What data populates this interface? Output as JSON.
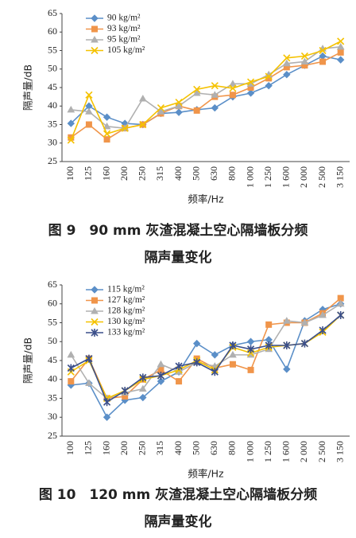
{
  "chart_data": [
    {
      "type": "line",
      "caption": [
        "图 9　90 mm 灰渣混凝土空心隔墙板分频",
        "隔声量变化"
      ],
      "x_label": "频率/Hz",
      "y_label": "隔声量/dB",
      "categories": [
        "100",
        "125",
        "160",
        "200",
        "250",
        "315",
        "400",
        "500",
        "630",
        "800",
        "1 000",
        "1 250",
        "1 600",
        "2 000",
        "2 500",
        "3 150"
      ],
      "ylim": [
        25,
        65
      ],
      "yticks": [
        25,
        30,
        35,
        40,
        45,
        50,
        55,
        60,
        65
      ],
      "legend": "upper left",
      "series": [
        {
          "name": "90 kg/m²",
          "color": "#5b8fc8",
          "marker": "diamond",
          "values": [
            35.3,
            40,
            37,
            35.3,
            35,
            38,
            38.3,
            39,
            39.5,
            42.5,
            43.5,
            45.5,
            48.5,
            51,
            53.5,
            52.5
          ]
        },
        {
          "name": "93 kg/m²",
          "color": "#f0954a",
          "marker": "square",
          "values": [
            31.5,
            35,
            31,
            34,
            35,
            38,
            40,
            38.8,
            42.5,
            43,
            45,
            47.5,
            50.5,
            51,
            52,
            54.5
          ]
        },
        {
          "name": "95 kg/m²",
          "color": "#b0b0b0",
          "marker": "triangle",
          "values": [
            39,
            38.5,
            34.5,
            34,
            42,
            38.5,
            40,
            43.5,
            43,
            46,
            46,
            48.5,
            51.5,
            52,
            55.5,
            56
          ]
        },
        {
          "name": "105 kg/m²",
          "color": "#f5c200",
          "marker": "x",
          "values": [
            30.8,
            43,
            32.5,
            34,
            35,
            39.5,
            41,
            44.5,
            45.5,
            44.8,
            46.5,
            48,
            53,
            53.5,
            55,
            57.5
          ]
        }
      ]
    },
    {
      "type": "line",
      "caption": [
        "图 10　120 mm 灰渣混凝土空心隔墙板分频",
        "隔声量变化"
      ],
      "x_label": "频率/Hz",
      "y_label": "隔声量/dB",
      "categories": [
        "100",
        "125",
        "160",
        "200",
        "250",
        "315",
        "400",
        "500",
        "630",
        "800",
        "1 000",
        "1 250",
        "1 600",
        "2 000",
        "2 500",
        "3 150"
      ],
      "ylim": [
        25,
        65
      ],
      "yticks": [
        25,
        30,
        35,
        40,
        45,
        50,
        55,
        60,
        65
      ],
      "legend": "upper left",
      "series": [
        {
          "name": "115 kg/m²",
          "color": "#5b8fc8",
          "marker": "diamond",
          "values": [
            38.5,
            39,
            30,
            34.5,
            35.2,
            39.5,
            42,
            49.5,
            46.5,
            49,
            50,
            50.5,
            42.7,
            55.5,
            58.5,
            60
          ]
        },
        {
          "name": "127 kg/m²",
          "color": "#f0954a",
          "marker": "square",
          "values": [
            39.5,
            45.5,
            35,
            35.5,
            40,
            42.5,
            39.5,
            45.5,
            43,
            44,
            42.5,
            54.5,
            55,
            55,
            57.5,
            61.5
          ]
        },
        {
          "name": "128 kg/m²",
          "color": "#b0b0b0",
          "marker": "triangle",
          "values": [
            46.5,
            39,
            35,
            36.5,
            37.5,
            44,
            42,
            44.5,
            43.5,
            46.5,
            46.5,
            48,
            55.5,
            55,
            57,
            60
          ]
        },
        {
          "name": "130 kg/m²",
          "color": "#f5c200",
          "marker": "x",
          "values": [
            42,
            45,
            35,
            37,
            40,
            41,
            42.5,
            45,
            42.5,
            48.5,
            47,
            48.5,
            49,
            49.5,
            52.5,
            57
          ]
        },
        {
          "name": "133 kg/m²",
          "color": "#3b4f8a",
          "marker": "star",
          "values": [
            43,
            45.5,
            34,
            37,
            40.5,
            41,
            43.5,
            44.5,
            42,
            49,
            48,
            49,
            49,
            49.5,
            53,
            57
          ]
        }
      ]
    }
  ]
}
